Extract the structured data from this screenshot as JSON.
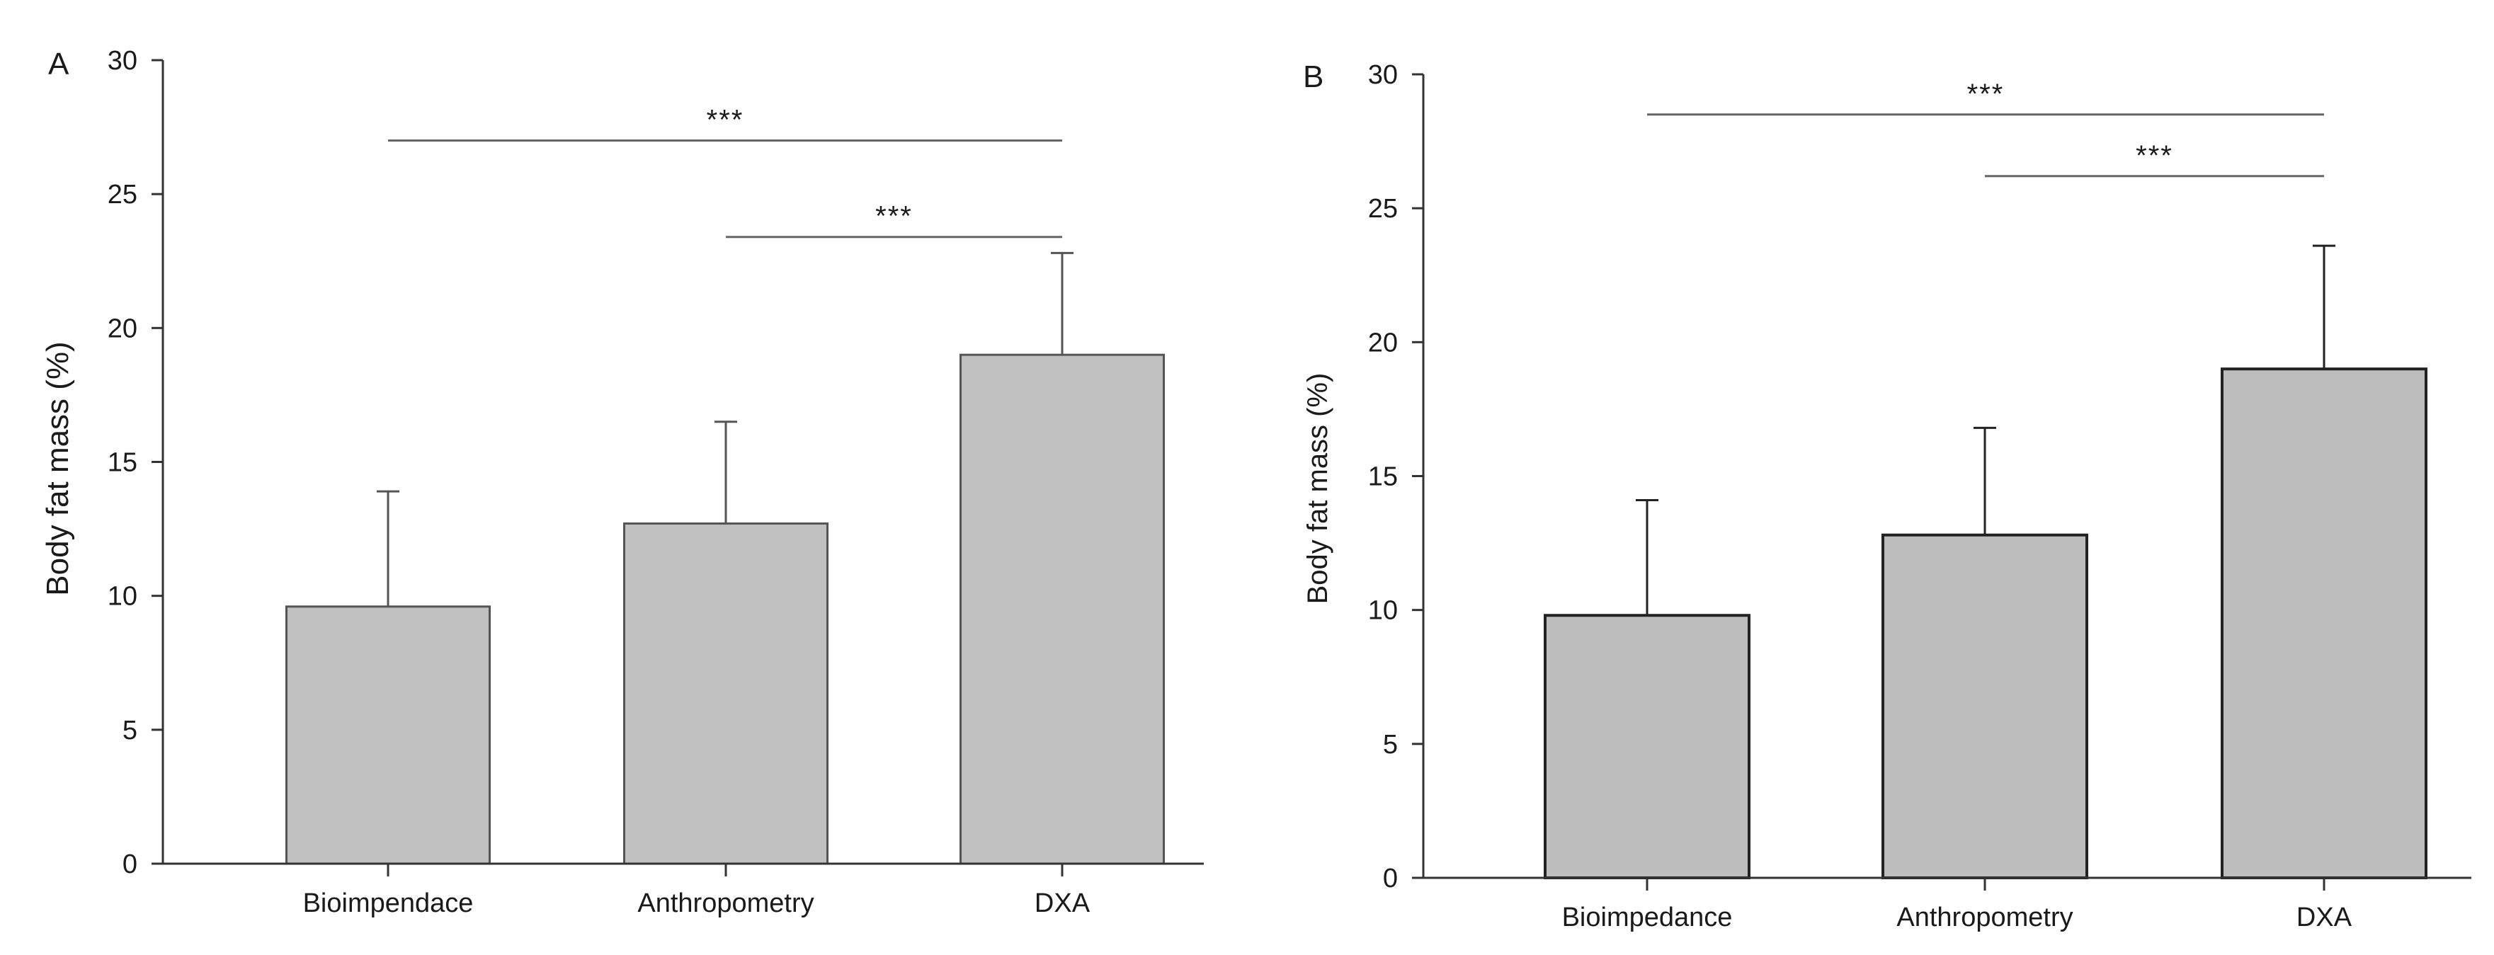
{
  "chart_data": [
    {
      "type": "bar",
      "panel_label": "A",
      "categories": [
        "Bioimpendace",
        "Anthropometry",
        "DXA"
      ],
      "values": [
        9.6,
        12.7,
        19.0
      ],
      "errors": [
        4.3,
        3.8,
        3.8
      ],
      "ylabel": "Body fat mass (%)",
      "xlabel": "",
      "ylim": [
        0,
        30
      ],
      "yticks": [
        "0",
        "5",
        "10",
        "15",
        "20",
        "25",
        "30"
      ],
      "grid": false,
      "bar_color": "#c0c0c0",
      "significance": [
        {
          "from": 0,
          "to": 2,
          "y": 27.0,
          "label": "***"
        },
        {
          "from": 1,
          "to": 2,
          "y": 23.4,
          "label": "***"
        }
      ]
    },
    {
      "type": "bar",
      "panel_label": "B",
      "categories": [
        "Bioimpedance",
        "Anthropometry",
        "DXA"
      ],
      "values": [
        9.8,
        12.8,
        19.0
      ],
      "errors": [
        4.3,
        4.0,
        4.6
      ],
      "ylabel": "Body fat mass (%)",
      "xlabel": "",
      "ylim": [
        0,
        30
      ],
      "yticks": [
        "0",
        "5",
        "10",
        "15",
        "20",
        "25",
        "30"
      ],
      "grid": false,
      "bar_color": "#bdbdbd",
      "significance": [
        {
          "from": 0,
          "to": 2,
          "y": 28.5,
          "label": "***"
        },
        {
          "from": 1,
          "to": 2,
          "y": 26.2,
          "label": "***"
        }
      ]
    }
  ]
}
